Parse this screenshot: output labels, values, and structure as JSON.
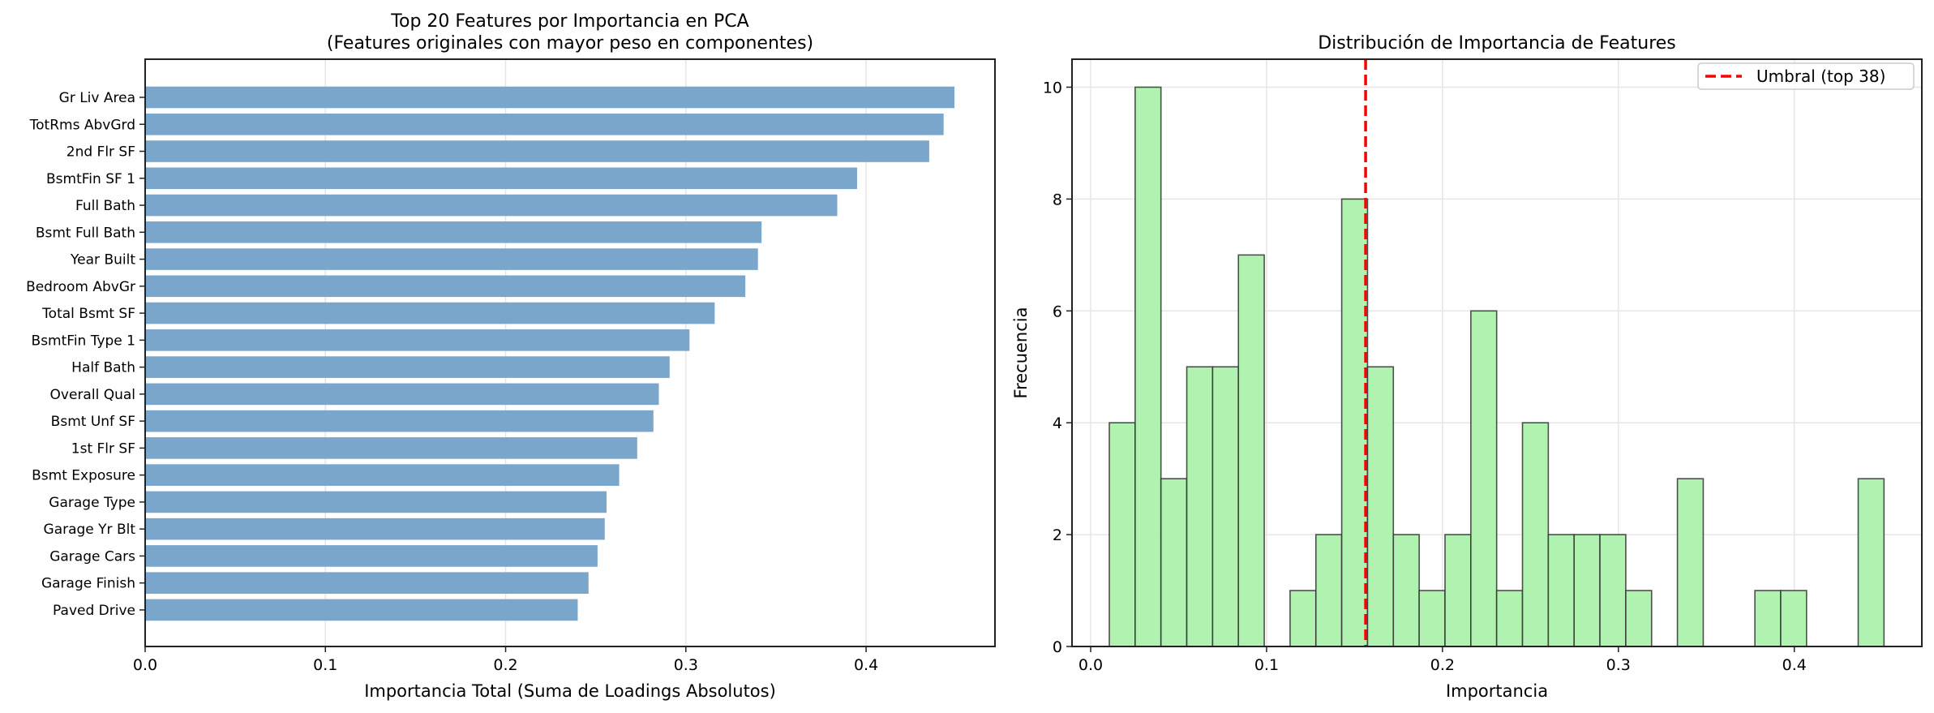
{
  "chart_data": [
    {
      "type": "bar",
      "orientation": "horizontal",
      "title": "Top 20 Features por Importancia en PCA",
      "subtitle": "(Features originales con mayor peso en componentes)",
      "xlabel": "Importancia Total (Suma de Loadings Absolutos)",
      "ylabel": "",
      "xlim": [
        0,
        0.4715
      ],
      "xticks": [
        0.0,
        0.1,
        0.2,
        0.3,
        0.4
      ],
      "xtick_labels": [
        "0.0",
        "0.1",
        "0.2",
        "0.3",
        "0.4"
      ],
      "grid": true,
      "bar_color": "#7ba6cb",
      "categories": [
        "Gr Liv Area",
        "TotRms AbvGrd",
        "2nd Flr SF",
        "BsmtFin SF 1",
        "Full Bath",
        "Bsmt Full Bath",
        "Year Built",
        "Bedroom AbvGr",
        "Total Bsmt SF",
        "BsmtFin Type 1",
        "Half Bath",
        "Overall Qual",
        "Bsmt Unf SF",
        "1st Flr SF",
        "Bsmt Exposure",
        "Garage Type",
        "Garage Yr Blt",
        "Garage Cars",
        "Garage Finish",
        "Paved Drive"
      ],
      "values": [
        0.449,
        0.443,
        0.435,
        0.395,
        0.384,
        0.342,
        0.34,
        0.333,
        0.316,
        0.302,
        0.291,
        0.285,
        0.282,
        0.273,
        0.263,
        0.256,
        0.255,
        0.251,
        0.246,
        0.24
      ]
    },
    {
      "type": "histogram",
      "title": "Distribución de Importancia de Features",
      "xlabel": "Importancia",
      "ylabel": "Frecuencia",
      "xlim": [
        -0.0106,
        0.4725
      ],
      "ylim": [
        0,
        10.5
      ],
      "xticks": [
        0.0,
        0.1,
        0.2,
        0.3,
        0.4
      ],
      "xtick_labels": [
        "0.0",
        "0.1",
        "0.2",
        "0.3",
        "0.4"
      ],
      "yticks": [
        0,
        2,
        4,
        6,
        8,
        10
      ],
      "ytick_labels": [
        "0",
        "2",
        "4",
        "6",
        "8",
        "10"
      ],
      "grid": true,
      "bar_color": "#b0f2b0",
      "edge_color": "#333333",
      "bin_start": 0.0106,
      "bin_width": 0.01468,
      "counts": [
        4,
        10,
        3,
        5,
        5,
        7,
        0,
        1,
        2,
        8,
        5,
        2,
        1,
        2,
        6,
        1,
        4,
        2,
        2,
        2,
        1,
        0,
        3,
        0,
        0,
        1,
        1,
        0,
        0,
        3
      ],
      "threshold": {
        "value": 0.1563,
        "color": "#ff0000",
        "style": "dashed",
        "label": "Umbral (top 38)"
      },
      "legend": {
        "position": "top-right",
        "entries": [
          "Umbral (top 38)"
        ]
      }
    }
  ]
}
